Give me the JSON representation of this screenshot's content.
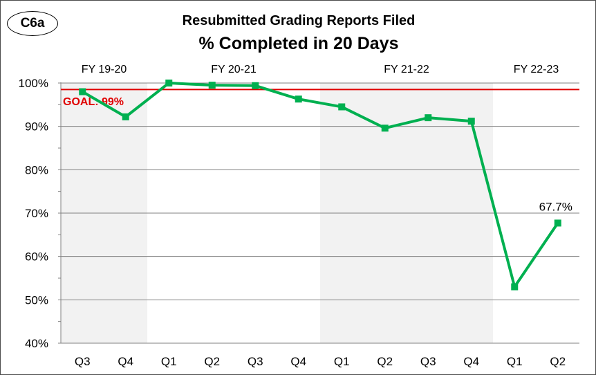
{
  "badge": "C6a",
  "chart_data": {
    "type": "line",
    "title": "Resubmitted Grading Reports Filed",
    "subtitle": "% Completed in 20 Days",
    "categories": [
      "Q3",
      "Q4",
      "Q1",
      "Q2",
      "Q3",
      "Q4",
      "Q1",
      "Q2",
      "Q3",
      "Q4",
      "Q1",
      "Q2"
    ],
    "fiscal_years": [
      {
        "label": "FY 19-20",
        "start": 0,
        "end": 1,
        "shaded": true
      },
      {
        "label": "FY 20-21",
        "start": 2,
        "end": 5,
        "shaded": false
      },
      {
        "label": "FY 21-22",
        "start": 6,
        "end": 9,
        "shaded": true
      },
      {
        "label": "FY 22-23",
        "start": 10,
        "end": 11,
        "shaded": false
      }
    ],
    "series": [
      {
        "values": [
          98.0,
          92.2,
          100.0,
          99.5,
          99.4,
          96.3,
          94.5,
          89.6,
          92.0,
          91.2,
          53.0,
          67.7
        ]
      }
    ],
    "goal": {
      "label": "GOAL: 99%",
      "value": 98.5
    },
    "last_label": "67.7%",
    "ylim": [
      40,
      100
    ],
    "yticks": [
      "40%",
      "50%",
      "60%",
      "70%",
      "80%",
      "90%",
      "100%"
    ],
    "ytick_values": [
      40,
      50,
      60,
      70,
      80,
      90,
      100
    ],
    "grid": true,
    "colors": {
      "line": "#00b050",
      "goal": "#e00000",
      "shade": "#f2f2f2",
      "grid": "#808080"
    }
  }
}
